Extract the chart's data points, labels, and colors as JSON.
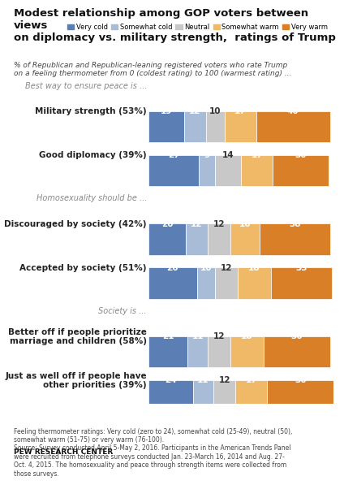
{
  "title": "Modest relationship among GOP voters between views\non diplomacy vs. military strength,  ratings of Trump",
  "subtitle": "% of Republican and Republican-leaning registered voters who rate Trump\non a feeling thermometer from 0 (coldest rating) to 100 (warmest rating) ...",
  "legend_labels": [
    "Very cold",
    "Somewhat cold",
    "Neutral",
    "Somewhat warm",
    "Very warm"
  ],
  "colors": [
    "#5b7fb5",
    "#a8bcd8",
    "#c8c8c8",
    "#f0b967",
    "#d87f28"
  ],
  "section_labels": [
    "Best way to ensure peace is ...",
    "Homosexuality should be ...",
    "Society is ..."
  ],
  "bars": [
    {
      "label": "Military strength (53%)",
      "section": 0,
      "values": [
        19,
        12,
        10,
        17,
        40
      ]
    },
    {
      "label": "Good diplomacy (39%)",
      "section": 0,
      "values": [
        27,
        9,
        14,
        17,
        30
      ]
    },
    {
      "label": "Discouraged by society (42%)",
      "section": 1,
      "values": [
        20,
        12,
        12,
        16,
        38
      ]
    },
    {
      "label": "Accepted by society (51%)",
      "section": 1,
      "values": [
        26,
        10,
        12,
        18,
        33
      ]
    },
    {
      "label": "Better off if people prioritize\nmarriage and children (58%)",
      "section": 2,
      "values": [
        21,
        11,
        12,
        18,
        36
      ]
    },
    {
      "label": "Just as well off if people have\nother priorities (39%)",
      "section": 2,
      "values": [
        24,
        11,
        12,
        17,
        36
      ]
    }
  ],
  "footnote": "Feeling thermometer ratings: Very cold (zero to 24), somewhat cold (25-49), neutral (50),\nsomewhat warm (51-75) or very warm (76-100).\nSource: Survey conducted April 5-May 2, 2016. Participants in the American Trends Panel\nwere recruited from telephone surveys conducted Jan. 23-March 16, 2014 and Aug. 27-\nOct. 4, 2015. The homosexuality and peace through strength items were collected from\nthose surveys.",
  "source_label": "PEW RESEARCH CENTER",
  "background_color": "#ffffff"
}
